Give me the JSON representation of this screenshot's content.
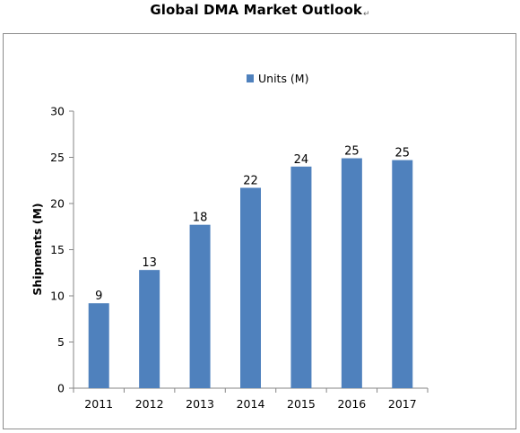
{
  "chart_data": {
    "type": "bar",
    "title": "Global DMA Market Outlook",
    "title_mark": "↵",
    "xlabel": "",
    "ylabel": "Shipments (M)",
    "categories": [
      "2011",
      "2012",
      "2013",
      "2014",
      "2015",
      "2016",
      "2017"
    ],
    "series": [
      {
        "name": "Units (M)",
        "values": [
          9.2,
          12.8,
          17.7,
          21.7,
          24.0,
          24.9,
          24.7
        ],
        "labels": [
          "9",
          "13",
          "18",
          "22",
          "24",
          "25",
          "25"
        ],
        "color": "#4f81bd"
      }
    ],
    "ylim": [
      0,
      30
    ],
    "yticks": [
      "0",
      "5",
      "10",
      "15",
      "20",
      "25",
      "30"
    ],
    "grid": false,
    "legend": "top-center"
  }
}
